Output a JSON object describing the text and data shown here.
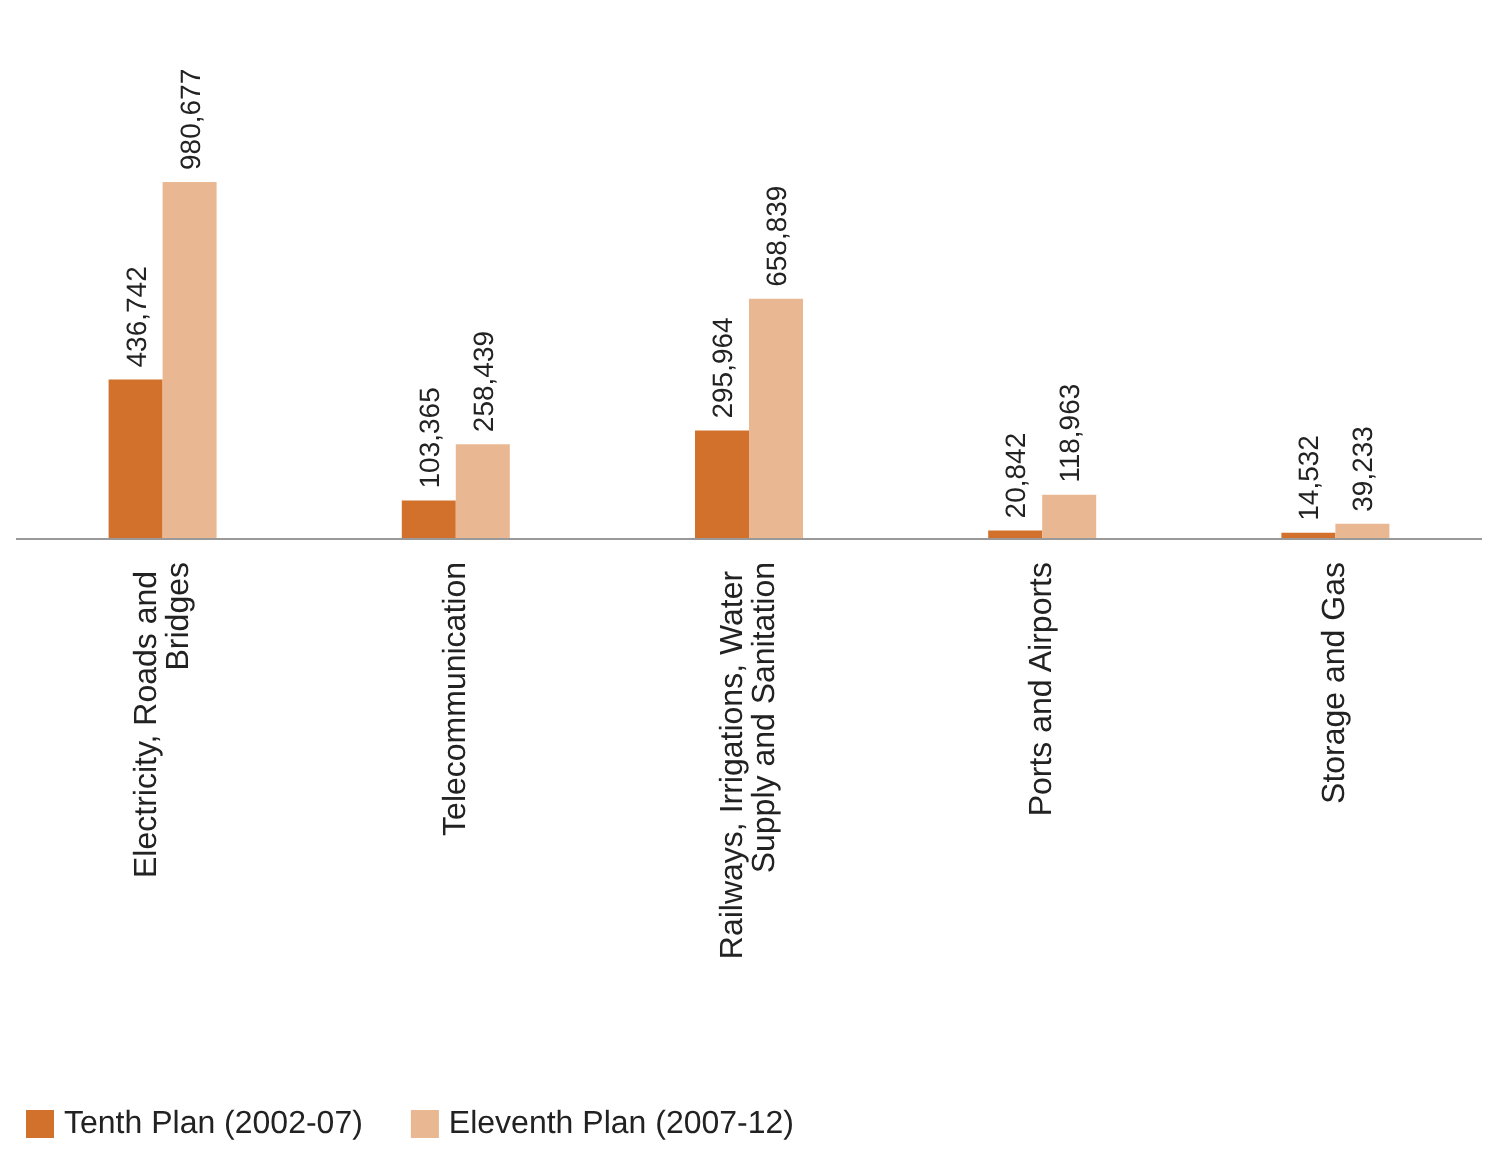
{
  "chart_data": {
    "type": "bar",
    "categories": [
      "Electricity, Roads and Bridges",
      "Telecommunication",
      "Railways, Irrigations, Water Supply and Sanitation",
      "Ports and Airports",
      "Storage and Gas"
    ],
    "series": [
      {
        "name": "Tenth Plan (2002-07)",
        "color": "#d2712b",
        "values": [
          436742,
          103365,
          295964,
          20842,
          14532
        ],
        "value_labels": [
          "436,742",
          "103,365",
          "295,964",
          "20,842",
          "14,532"
        ]
      },
      {
        "name": "Eleventh Plan (2007-12)",
        "color": "#e9b791",
        "values": [
          980677,
          258439,
          658839,
          118963,
          39233
        ],
        "value_labels": [
          "980,677",
          "258,439",
          "658,839",
          "118,963",
          "39,233"
        ]
      }
    ],
    "tick_labels": "x",
    "legend": "bottom left"
  }
}
